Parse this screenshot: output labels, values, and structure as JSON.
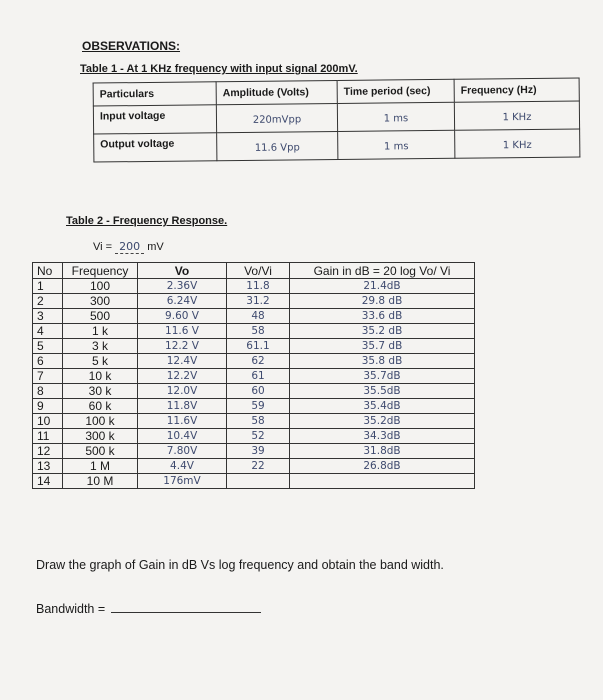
{
  "observations_heading": "OBSERVATIONS:",
  "table1": {
    "title": "Table 1 - At 1 KHz frequency with input signal 200mV.",
    "headers": [
      "Particulars",
      "Amplitude (Volts)",
      "Time period (sec)",
      "Frequency (Hz)"
    ],
    "rows": [
      {
        "label": "Input voltage",
        "amplitude": "220mVpp",
        "period": "1 ms",
        "frequency": "1 KHz"
      },
      {
        "label": "Output voltage",
        "amplitude": "11.6 Vpp",
        "period": "1 ms",
        "frequency": "1 KHz"
      }
    ]
  },
  "table2": {
    "title": "Table 2 - Frequency Response.",
    "vi_prefix": "Vi =",
    "vi_value": "200",
    "vi_unit": "mV",
    "headers": [
      "No",
      "Frequency",
      "Vo",
      "Vo/Vi",
      "Gain in dB = 20 log Vo/ Vi"
    ],
    "rows": [
      {
        "no": "1",
        "freq": "100",
        "vo": "2.36V",
        "ratio": "11.8",
        "gain": "21.4dB"
      },
      {
        "no": "2",
        "freq": "300",
        "vo": "6.24V",
        "ratio": "31.2",
        "gain": "29.8 dB"
      },
      {
        "no": "3",
        "freq": "500",
        "vo": "9.60 V",
        "ratio": "48",
        "gain": "33.6 dB"
      },
      {
        "no": "4",
        "freq": "1 k",
        "vo": "11.6 V",
        "ratio": "58",
        "gain": "35.2 dB"
      },
      {
        "no": "5",
        "freq": "3 k",
        "vo": "12.2 V",
        "ratio": "61.1",
        "gain": "35.7 dB"
      },
      {
        "no": "6",
        "freq": "5 k",
        "vo": "12.4V",
        "ratio": "62",
        "gain": "35.8 dB"
      },
      {
        "no": "7",
        "freq": "10 k",
        "vo": "12.2V",
        "ratio": "61",
        "gain": "35.7dB"
      },
      {
        "no": "8",
        "freq": "30 k",
        "vo": "12.0V",
        "ratio": "60",
        "gain": "35.5dB"
      },
      {
        "no": "9",
        "freq": "60 k",
        "vo": "11.8V",
        "ratio": "59",
        "gain": "35.4dB"
      },
      {
        "no": "10",
        "freq": "100 k",
        "vo": "11.6V",
        "ratio": "58",
        "gain": "35.2dB"
      },
      {
        "no": "11",
        "freq": "300 k",
        "vo": "10.4V",
        "ratio": "52",
        "gain": "34.3dB"
      },
      {
        "no": "12",
        "freq": "500 k",
        "vo": "7.80V",
        "ratio": "39",
        "gain": "31.8dB"
      },
      {
        "no": "13",
        "freq": "1 M",
        "vo": "4.4V",
        "ratio": "22",
        "gain": "26.8dB"
      },
      {
        "no": "14",
        "freq": "10 M",
        "vo": "176mV",
        "ratio": "",
        "gain": ""
      }
    ]
  },
  "instruction": "Draw the graph of Gain in dB Vs log frequency and obtain the band width.",
  "bandwidth_label": "Bandwidth ="
}
